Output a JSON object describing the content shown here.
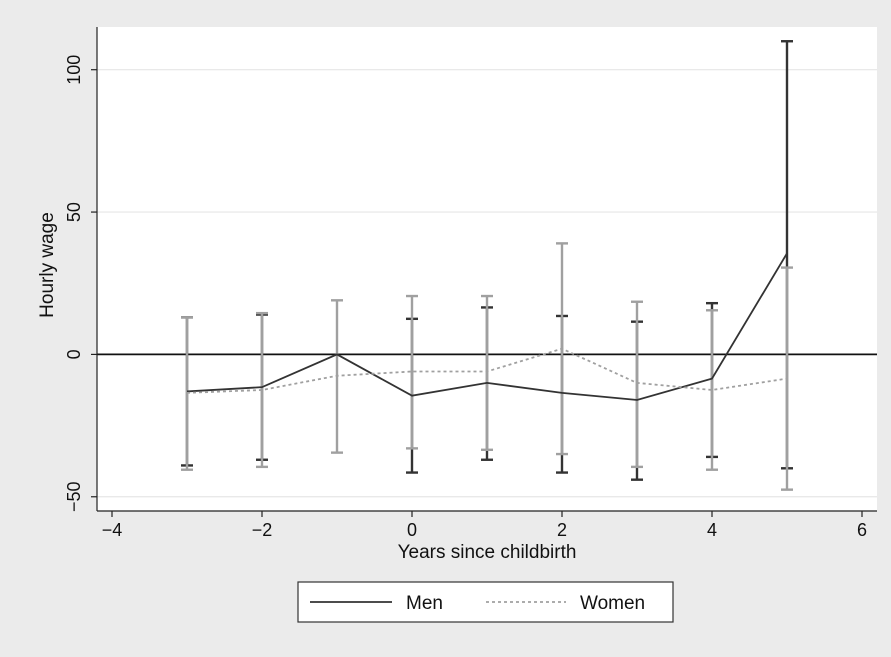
{
  "chart_data": {
    "type": "line",
    "xlabel": "Years since childbirth",
    "ylabel": "Hourly wage",
    "xlim": [
      -4.2,
      6.2
    ],
    "ylim": [
      -55,
      115
    ],
    "xticks": [
      -4,
      -2,
      0,
      2,
      4,
      6
    ],
    "yticks": [
      -50,
      0,
      50,
      100
    ],
    "xtick_labels": [
      "−4",
      "−2",
      "0",
      "2",
      "4",
      "6"
    ],
    "ytick_labels": [
      "−50",
      "0",
      "50",
      "100"
    ],
    "reference_line": 0,
    "grid": true,
    "legend_position": "bottom",
    "series": [
      {
        "name": "Men",
        "color": "#333333",
        "dash": "solid",
        "x": [
          -3,
          -2,
          -1,
          0,
          1,
          2,
          3,
          4,
          5
        ],
        "y": [
          -13,
          -11.5,
          0,
          -14.5,
          -10,
          -13.5,
          -16,
          -8.5,
          35.5
        ],
        "lower": [
          -39,
          -37,
          0,
          -41.5,
          -37,
          -41.5,
          -44,
          -36,
          -40
        ],
        "upper": [
          13,
          14,
          0,
          12.5,
          16.5,
          13.5,
          11.5,
          18,
          110
        ]
      },
      {
        "name": "Women",
        "color": "#a0a0a0",
        "dash": "dotted",
        "x": [
          -3,
          -2,
          -1,
          0,
          1,
          2,
          3,
          4,
          5
        ],
        "y": [
          -13.5,
          -12.5,
          -7.5,
          -6,
          -6,
          2,
          -10,
          -12.5,
          -8.5
        ],
        "lower": [
          -40.5,
          -39.5,
          -34.5,
          -33,
          -33.5,
          -35,
          -39.5,
          -40.5,
          -47.5
        ],
        "upper": [
          13,
          14.5,
          19,
          20.5,
          20.5,
          39,
          18.5,
          15.5,
          30.5
        ]
      }
    ]
  }
}
